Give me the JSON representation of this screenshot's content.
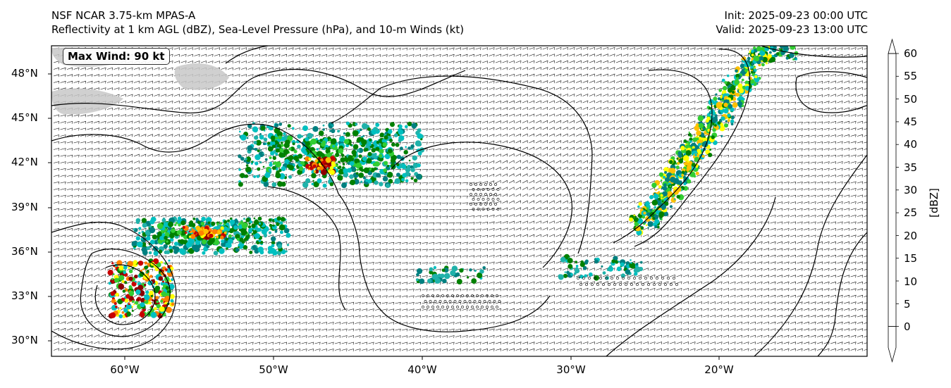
{
  "header": {
    "title_line1": "NSF NCAR 3.75-km MPAS-A",
    "title_line2": "Reflectivity at 1 km AGL (dBZ), Sea-Level Pressure (hPa), and 10-m Winds (kt)",
    "init": "Init: 2025-09-23 00:00 UTC",
    "valid": "Valid: 2025-09-23 13:00 UTC"
  },
  "map": {
    "lat_ticks": [
      "48°N",
      "45°N",
      "42°N",
      "39°N",
      "36°N",
      "33°N",
      "30°N"
    ],
    "lon_ticks": [
      "60°W",
      "50°W",
      "40°W",
      "30°W",
      "20°W"
    ],
    "annotation": "Max Wind: 90 kt",
    "land_color": "#c8c8c8",
    "isobar_color": "#000000"
  },
  "colorbar": {
    "labels": [
      "60",
      "55",
      "50",
      "45",
      "40",
      "35",
      "30",
      "25",
      "20",
      "15",
      "10",
      "5",
      "0"
    ],
    "unit": "[dBZ]",
    "colors": [
      "#ffe4e1",
      "#ff00ff",
      "#8b0000",
      "#c80000",
      "#ff8000",
      "#ffc000",
      "#ffff00",
      "#32cd32",
      "#008000",
      "#20b2aa",
      "#00c0c0",
      "#008080"
    ]
  }
}
